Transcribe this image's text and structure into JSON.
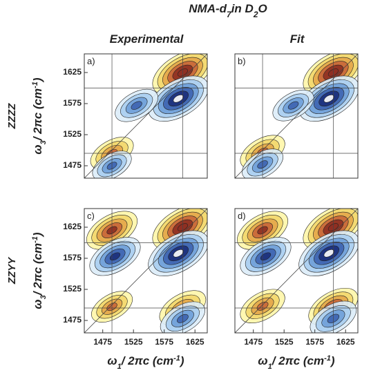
{
  "figure": {
    "title_parts": [
      "NMA-d",
      "7",
      "in D",
      "2",
      "O"
    ],
    "column_titles": [
      "Experimental",
      "Fit"
    ],
    "row_labels": [
      "ZZZZ",
      "ZZYY"
    ],
    "ylabel_parts": [
      "ω",
      "3",
      "/ 2πc (cm",
      "-1",
      ")"
    ],
    "xlabel_parts": [
      "ω",
      "1",
      "/ 2πc (cm",
      "-1",
      ")"
    ]
  },
  "chart_data": [
    {
      "type": "contour",
      "panel_label": "a)",
      "xlim": [
        1445,
        1645
      ],
      "ylim": [
        1455,
        1655
      ],
      "yticks": [
        1475,
        1525,
        1575,
        1625
      ],
      "vlines": [
        1490,
        1605
      ],
      "hlines": [
        1495,
        1600
      ],
      "peaks": [
        {
          "x": 1605,
          "y": 1625,
          "amplitude": 1
        },
        {
          "x": 1598,
          "y": 1583,
          "amplitude": -1
        },
        {
          "x": 1530,
          "y": 1572,
          "amplitude": -0.35
        },
        {
          "x": 1490,
          "y": 1495,
          "amplitude": 0.35
        },
        {
          "x": 1490,
          "y": 1475,
          "amplitude": -0.25
        }
      ]
    },
    {
      "type": "contour",
      "panel_label": "b)",
      "xlim": [
        1445,
        1645
      ],
      "ylim": [
        1455,
        1655
      ],
      "vlines": [
        1490,
        1605
      ],
      "hlines": [
        1495,
        1600
      ],
      "peaks": [
        {
          "x": 1605,
          "y": 1625,
          "amplitude": 1
        },
        {
          "x": 1598,
          "y": 1583,
          "amplitude": -1
        },
        {
          "x": 1540,
          "y": 1572,
          "amplitude": -0.3
        },
        {
          "x": 1490,
          "y": 1497,
          "amplitude": 0.4
        },
        {
          "x": 1490,
          "y": 1477,
          "amplitude": -0.3
        }
      ]
    },
    {
      "type": "contour",
      "panel_label": "c)",
      "xlim": [
        1445,
        1645
      ],
      "ylim": [
        1455,
        1655
      ],
      "xticks": [
        1475,
        1525,
        1575,
        1625
      ],
      "yticks": [
        1475,
        1525,
        1575,
        1625
      ],
      "vlines": [
        1490,
        1605
      ],
      "hlines": [
        1495,
        1600
      ],
      "peaks": [
        {
          "x": 1605,
          "y": 1625,
          "amplitude": 1
        },
        {
          "x": 1598,
          "y": 1583,
          "amplitude": -1
        },
        {
          "x": 1490,
          "y": 1620,
          "amplitude": 0.6
        },
        {
          "x": 1495,
          "y": 1578,
          "amplitude": -0.6
        },
        {
          "x": 1490,
          "y": 1497,
          "amplitude": 0.3
        },
        {
          "x": 1605,
          "y": 1495,
          "amplitude": 0.45
        },
        {
          "x": 1605,
          "y": 1478,
          "amplitude": -0.4
        }
      ]
    },
    {
      "type": "contour",
      "panel_label": "d)",
      "xlim": [
        1445,
        1645
      ],
      "ylim": [
        1455,
        1655
      ],
      "xticks": [
        1475,
        1525,
        1575,
        1625
      ],
      "vlines": [
        1490,
        1605
      ],
      "hlines": [
        1495,
        1600
      ],
      "peaks": [
        {
          "x": 1605,
          "y": 1625,
          "amplitude": 1
        },
        {
          "x": 1598,
          "y": 1583,
          "amplitude": -1
        },
        {
          "x": 1490,
          "y": 1620,
          "amplitude": 0.6
        },
        {
          "x": 1495,
          "y": 1578,
          "amplitude": -0.6
        },
        {
          "x": 1490,
          "y": 1498,
          "amplitude": 0.4
        },
        {
          "x": 1605,
          "y": 1497,
          "amplitude": 0.55
        },
        {
          "x": 1605,
          "y": 1478,
          "amplitude": -0.45
        }
      ]
    }
  ]
}
